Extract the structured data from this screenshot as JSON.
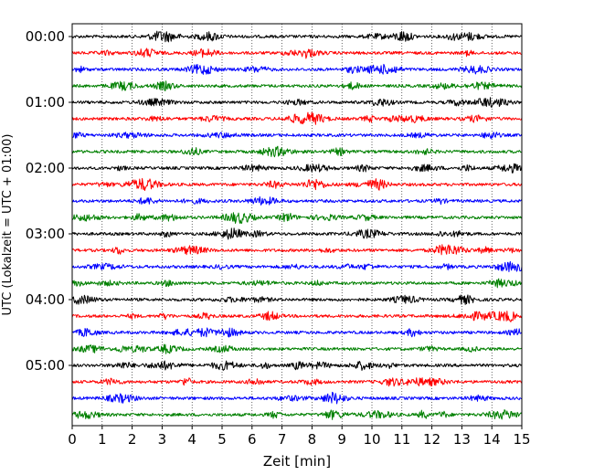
{
  "chart_data": {
    "type": "line",
    "title": "",
    "xlabel": "Zeit  [min]",
    "ylabel": "UTC (Lokalzeit = UTC + 01:00)",
    "xlim": [
      0,
      15
    ],
    "x_ticks": [
      0,
      1,
      2,
      3,
      4,
      5,
      6,
      7,
      8,
      9,
      10,
      11,
      12,
      13,
      14,
      15
    ],
    "x_tick_labels": [
      "0",
      "1",
      "2",
      "3",
      "4",
      "5",
      "6",
      "7",
      "8",
      "9",
      "10",
      "11",
      "12",
      "13",
      "14",
      "15"
    ],
    "grid": "vertical-dotted",
    "trace_interval_minutes": 15,
    "y_ticks": [
      {
        "trace_index": 0,
        "label": "00:00"
      },
      {
        "trace_index": 4,
        "label": "01:00"
      },
      {
        "trace_index": 8,
        "label": "02:00"
      },
      {
        "trace_index": 12,
        "label": "03:00"
      },
      {
        "trace_index": 16,
        "label": "04:00"
      },
      {
        "trace_index": 20,
        "label": "05:00"
      }
    ],
    "series_colors": [
      "#000000",
      "#ff0000",
      "#0000ff",
      "#008000"
    ],
    "series": [
      {
        "start": "00:00",
        "color": "#000000"
      },
      {
        "start": "00:15",
        "color": "#ff0000"
      },
      {
        "start": "00:30",
        "color": "#0000ff"
      },
      {
        "start": "00:45",
        "color": "#008000"
      },
      {
        "start": "01:00",
        "color": "#000000"
      },
      {
        "start": "01:15",
        "color": "#ff0000"
      },
      {
        "start": "01:30",
        "color": "#0000ff"
      },
      {
        "start": "01:45",
        "color": "#008000"
      },
      {
        "start": "02:00",
        "color": "#000000"
      },
      {
        "start": "02:15",
        "color": "#ff0000"
      },
      {
        "start": "02:30",
        "color": "#0000ff"
      },
      {
        "start": "02:45",
        "color": "#008000"
      },
      {
        "start": "03:00",
        "color": "#000000"
      },
      {
        "start": "03:15",
        "color": "#ff0000"
      },
      {
        "start": "03:30",
        "color": "#0000ff"
      },
      {
        "start": "03:45",
        "color": "#008000"
      },
      {
        "start": "04:00",
        "color": "#000000"
      },
      {
        "start": "04:15",
        "color": "#ff0000"
      },
      {
        "start": "04:30",
        "color": "#0000ff"
      },
      {
        "start": "04:45",
        "color": "#008000"
      },
      {
        "start": "05:00",
        "color": "#000000"
      },
      {
        "start": "05:15",
        "color": "#ff0000"
      },
      {
        "start": "05:30",
        "color": "#0000ff"
      },
      {
        "start": "05:45",
        "color": "#008000"
      }
    ]
  }
}
